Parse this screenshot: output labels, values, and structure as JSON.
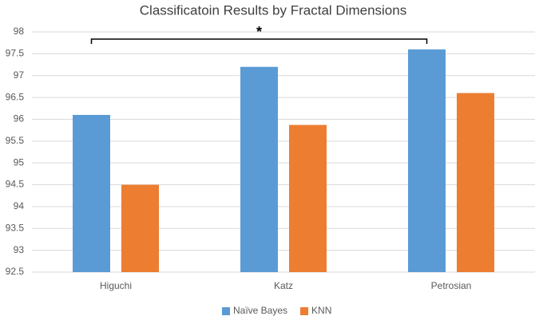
{
  "chart_data": {
    "type": "bar",
    "title": "Classificatoin Results by Fractal Dimensions",
    "categories": [
      "Higuchi",
      "Katz",
      "Petrosian"
    ],
    "series": [
      {
        "name": "Naïve Bayes",
        "color": "#5b9bd5",
        "values": [
          96.1,
          97.2,
          97.6
        ]
      },
      {
        "name": "KNN",
        "color": "#ed7d31",
        "values": [
          94.5,
          95.87,
          96.6
        ]
      }
    ],
    "ylim": [
      92.5,
      98
    ],
    "yticks": [
      92.5,
      93,
      93.5,
      94,
      94.5,
      95,
      95.5,
      96,
      96.5,
      97,
      97.5,
      98
    ],
    "grid": true,
    "legend": "bottom",
    "annotation": "*"
  }
}
